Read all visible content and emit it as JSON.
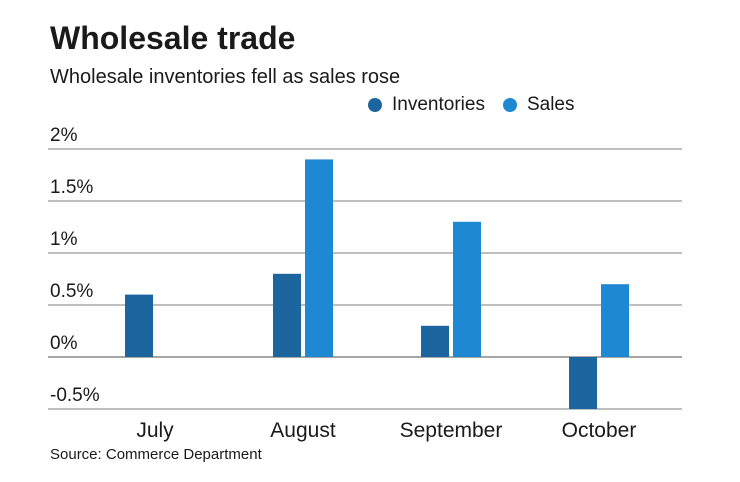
{
  "title": "Wholesale trade",
  "subtitle": "Wholesale inventories fell as sales rose",
  "source": "Source: Commerce Department",
  "chart_data": {
    "type": "bar",
    "title": "Wholesale trade",
    "subtitle": "Wholesale inventories fell as sales rose",
    "categories": [
      "July",
      "August",
      "September",
      "October"
    ],
    "series": [
      {
        "name": "Inventories",
        "color": "#1d659e",
        "values": [
          0.6,
          0.8,
          0.3,
          -0.5
        ]
      },
      {
        "name": "Sales",
        "color": "#1f88d3",
        "values": [
          0,
          1.9,
          1.3,
          0.7
        ]
      }
    ],
    "yticks": [
      2,
      1.5,
      1,
      0.5,
      0,
      -0.5
    ],
    "ytick_labels": [
      "2%",
      "1.5%",
      "1%",
      "0.5%",
      "0%",
      "-0.5%"
    ],
    "ylim": [
      -0.5,
      2
    ],
    "xlabel": "",
    "ylabel": "",
    "grid": true,
    "legend": "top-right"
  }
}
